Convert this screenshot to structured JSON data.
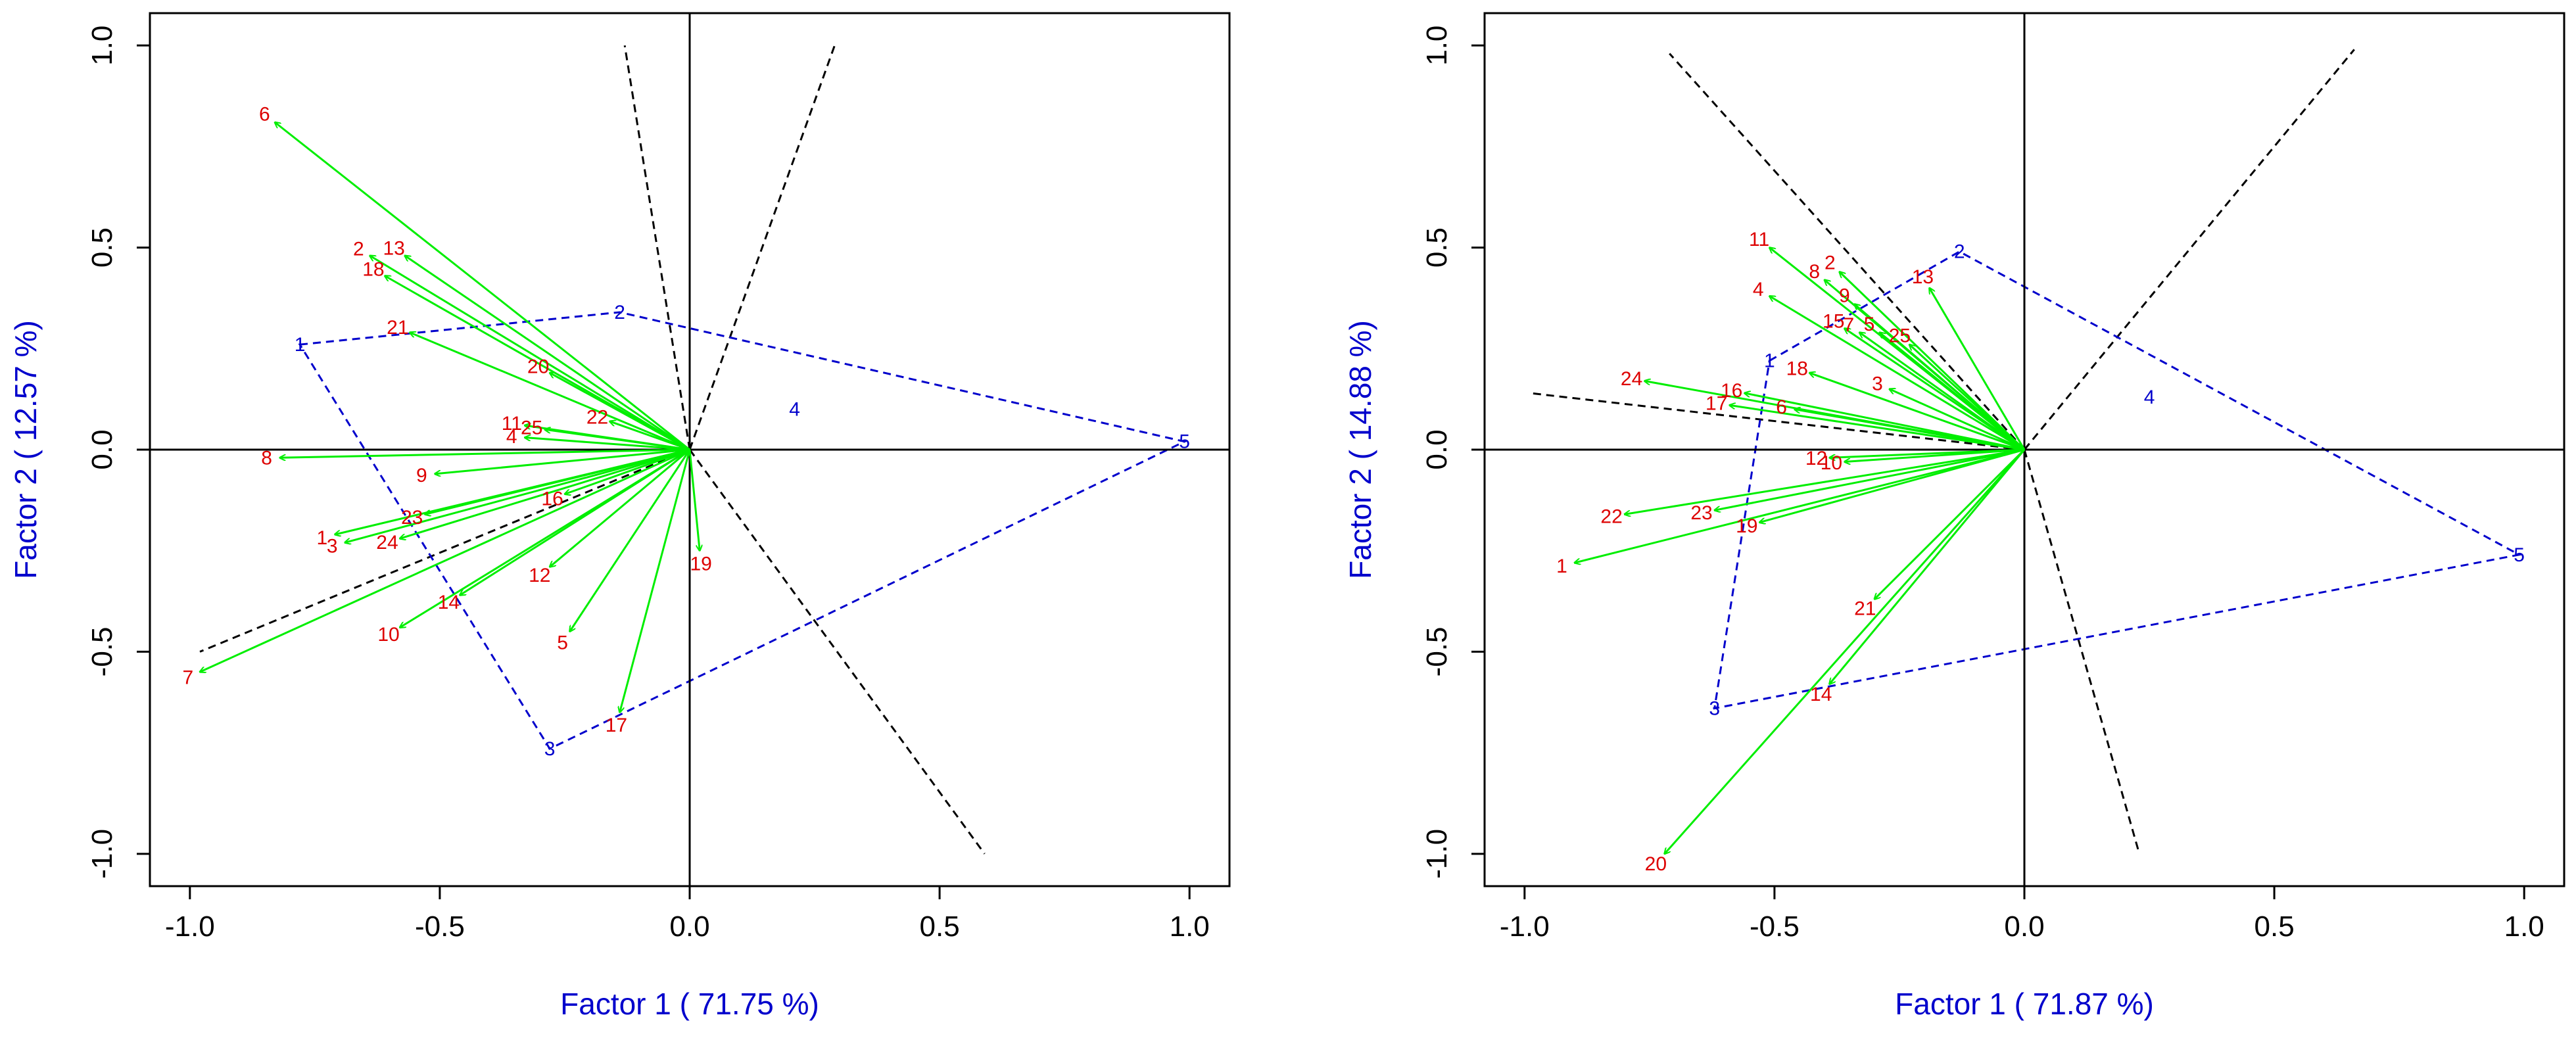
{
  "colors": {
    "vector": "#00ee00",
    "vector_label": "#dd0000",
    "environment": "#0000cc",
    "axis_title": "#0000cc",
    "sector_line": "#000000",
    "frame": "#000000"
  },
  "chart_data": [
    {
      "type": "scatter",
      "subtype": "GGE biplot (vector view)",
      "xlabel": "Factor 1 ( 71.75 %)",
      "ylabel": "Factor 2 ( 12.57 %)",
      "xlim": [
        -1.08,
        1.08
      ],
      "ylim": [
        -1.08,
        1.08
      ],
      "xticks": [
        -1.0,
        -0.5,
        0.0,
        0.5,
        1.0
      ],
      "xtick_labels": [
        "-1.0",
        "-0.5",
        "0.0",
        "0.5",
        "1.0"
      ],
      "yticks": [
        -1.0,
        -0.5,
        0.0,
        0.5,
        1.0
      ],
      "ytick_labels": [
        "-1.0",
        "-0.5",
        "0.0",
        "0.5",
        "1.0"
      ],
      "genotypes": [
        {
          "label": "1",
          "x": -0.71,
          "y": -0.21
        },
        {
          "label": "2",
          "x": -0.64,
          "y": 0.48
        },
        {
          "label": "3",
          "x": -0.69,
          "y": -0.23
        },
        {
          "label": "4",
          "x": -0.33,
          "y": 0.03
        },
        {
          "label": "5",
          "x": -0.24,
          "y": -0.45
        },
        {
          "label": "6",
          "x": -0.83,
          "y": 0.81
        },
        {
          "label": "7",
          "x": -0.98,
          "y": -0.55
        },
        {
          "label": "8",
          "x": -0.82,
          "y": -0.02
        },
        {
          "label": "9",
          "x": -0.51,
          "y": -0.06
        },
        {
          "label": "10",
          "x": -0.58,
          "y": -0.44
        },
        {
          "label": "11",
          "x": -0.33,
          "y": 0.06
        },
        {
          "label": "12",
          "x": -0.28,
          "y": -0.29
        },
        {
          "label": "13",
          "x": -0.57,
          "y": 0.48
        },
        {
          "label": "14",
          "x": -0.46,
          "y": -0.36
        },
        {
          "label": "16",
          "x": -0.25,
          "y": -0.11
        },
        {
          "label": "17",
          "x": -0.14,
          "y": -0.65
        },
        {
          "label": "18",
          "x": -0.61,
          "y": 0.43
        },
        {
          "label": "19",
          "x": 0.02,
          "y": -0.25
        },
        {
          "label": "20",
          "x": -0.28,
          "y": 0.19
        },
        {
          "label": "21",
          "x": -0.56,
          "y": 0.29
        },
        {
          "label": "22",
          "x": -0.16,
          "y": 0.07
        },
        {
          "label": "23",
          "x": -0.53,
          "y": -0.16
        },
        {
          "label": "24",
          "x": -0.58,
          "y": -0.22
        },
        {
          "label": "25",
          "x": -0.29,
          "y": 0.05
        }
      ],
      "environments": [
        {
          "label": "1",
          "x": -0.78,
          "y": 0.26
        },
        {
          "label": "2",
          "x": -0.14,
          "y": 0.34
        },
        {
          "label": "3",
          "x": -0.28,
          "y": -0.74
        },
        {
          "label": "4",
          "x": 0.21,
          "y": 0.1
        },
        {
          "label": "5",
          "x": 0.99,
          "y": 0.02
        }
      ],
      "polygon_order": [
        "1",
        "2",
        "5",
        "3"
      ],
      "sector_lines": [
        {
          "x": -0.13,
          "y": 1.0
        },
        {
          "x": 0.29,
          "y": 1.0
        },
        {
          "x": 0.59,
          "y": -1.0
        },
        {
          "x": -0.98,
          "y": -0.5
        }
      ]
    },
    {
      "type": "scatter",
      "subtype": "GGE biplot (vector view)",
      "xlabel": "Factor 1 ( 71.87 %)",
      "ylabel": "Factor 2 ( 14.88 %)",
      "xlim": [
        -1.08,
        1.08
      ],
      "ylim": [
        -1.08,
        1.08
      ],
      "xticks": [
        -1.0,
        -0.5,
        0.0,
        0.5,
        1.0
      ],
      "xtick_labels": [
        "-1.0",
        "-0.5",
        "0.0",
        "0.5",
        "1.0"
      ],
      "yticks": [
        -1.0,
        -0.5,
        0.0,
        0.5,
        1.0
      ],
      "ytick_labels": [
        "-1.0",
        "-0.5",
        "0.0",
        "0.5",
        "1.0"
      ],
      "genotypes": [
        {
          "label": "1",
          "x": -0.9,
          "y": -0.28
        },
        {
          "label": "2",
          "x": -0.37,
          "y": 0.44
        },
        {
          "label": "3",
          "x": -0.27,
          "y": 0.15
        },
        {
          "label": "4",
          "x": -0.51,
          "y": 0.38
        },
        {
          "label": "5",
          "x": -0.29,
          "y": 0.29
        },
        {
          "label": "6",
          "x": -0.46,
          "y": 0.1
        },
        {
          "label": "7",
          "x": -0.33,
          "y": 0.29
        },
        {
          "label": "8",
          "x": -0.4,
          "y": 0.42
        },
        {
          "label": "9",
          "x": -0.34,
          "y": 0.36
        },
        {
          "label": "10",
          "x": -0.36,
          "y": -0.03
        },
        {
          "label": "11",
          "x": -0.51,
          "y": 0.5
        },
        {
          "label": "12",
          "x": -0.39,
          "y": -0.02
        },
        {
          "label": "13",
          "x": -0.19,
          "y": 0.4
        },
        {
          "label": "14",
          "x": -0.39,
          "y": -0.58
        },
        {
          "label": "15",
          "x": -0.36,
          "y": 0.3
        },
        {
          "label": "16",
          "x": -0.56,
          "y": 0.14
        },
        {
          "label": "17",
          "x": -0.59,
          "y": 0.11
        },
        {
          "label": "18",
          "x": -0.43,
          "y": 0.19
        },
        {
          "label": "19",
          "x": -0.53,
          "y": -0.18
        },
        {
          "label": "20",
          "x": -0.72,
          "y": -1.0
        },
        {
          "label": "21",
          "x": -0.3,
          "y": -0.37
        },
        {
          "label": "22",
          "x": -0.8,
          "y": -0.16
        },
        {
          "label": "23",
          "x": -0.62,
          "y": -0.15
        },
        {
          "label": "24",
          "x": -0.76,
          "y": 0.17
        },
        {
          "label": "25",
          "x": -0.23,
          "y": 0.26
        }
      ],
      "environments": [
        {
          "label": "1",
          "x": -0.51,
          "y": 0.22
        },
        {
          "label": "2",
          "x": -0.13,
          "y": 0.49
        },
        {
          "label": "3",
          "x": -0.62,
          "y": -0.64
        },
        {
          "label": "4",
          "x": 0.25,
          "y": 0.13
        },
        {
          "label": "5",
          "x": 0.99,
          "y": -0.26
        }
      ],
      "polygon_order": [
        "1",
        "2",
        "5",
        "3"
      ],
      "sector_lines": [
        {
          "x": -0.71,
          "y": 0.98
        },
        {
          "x": 0.66,
          "y": 0.99
        },
        {
          "x": 0.23,
          "y": -1.0
        },
        {
          "x": -0.99,
          "y": 0.14
        }
      ]
    }
  ]
}
